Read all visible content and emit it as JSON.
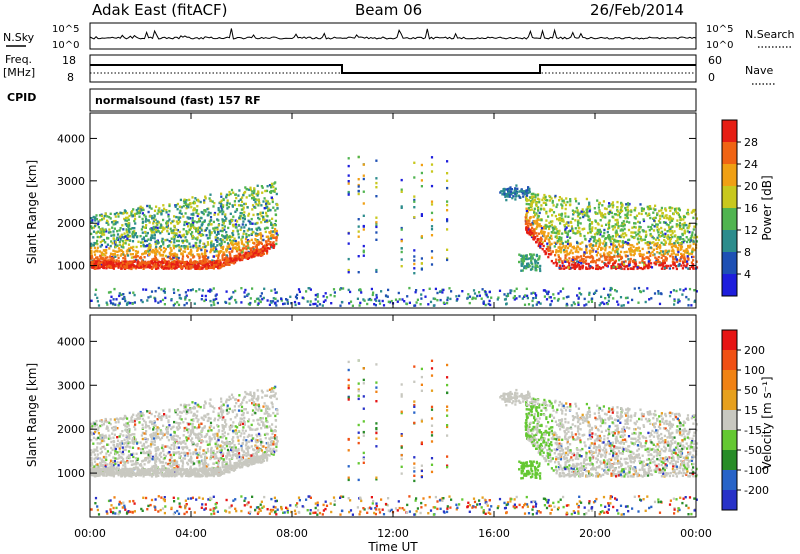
{
  "header": {
    "title": "Adak East (fitACF)",
    "beam": "Beam 06",
    "date": "26/Feb/2014"
  },
  "panels": {
    "nsky": {
      "label": "N.Sky",
      "right_label": "N.Search",
      "ticks": [
        "10^5",
        "10^0"
      ]
    },
    "freq": {
      "label_line1": "Freq.",
      "label_line2": "[MHz]",
      "ticks": [
        "18",
        "8"
      ],
      "right_label": "Nave",
      "right_ticks": [
        "60",
        "0"
      ]
    },
    "cpid": {
      "label": "CPID",
      "text": "normalsound (fast) 157 RF"
    }
  },
  "chart_data": [
    {
      "type": "heatmap",
      "name": "power",
      "xlabel": "Time UT",
      "ylabel": "Slant Range [km]",
      "x_range_hours": [
        0,
        24
      ],
      "ylim": [
        0,
        4600
      ],
      "y_ticks": [
        "1000",
        "2000",
        "3000",
        "4000"
      ],
      "colorbar": {
        "label": "Power [dB]",
        "ticks": [
          "4",
          "8",
          "12",
          "16",
          "20",
          "24",
          "28"
        ],
        "colors": [
          "#1e1edc",
          "#1e50b4",
          "#2c8c8c",
          "#50b450",
          "#c8c81e",
          "#f0a014",
          "#f06414",
          "#e61e14"
        ]
      }
    },
    {
      "type": "heatmap",
      "name": "velocity",
      "xlabel": "Time UT",
      "ylabel": "Slant Range [km]",
      "x_range_hours": [
        0,
        24
      ],
      "ylim": [
        0,
        4600
      ],
      "y_ticks": [
        "1000",
        "2000",
        "3000",
        "4000"
      ],
      "colorbar": {
        "label": "Velocity [m s⁻¹]",
        "ticks": [
          "200",
          "100",
          "50",
          "15",
          "-15",
          "-50",
          "-100",
          "-200"
        ],
        "colors": [
          "#2832c8",
          "#2864c8",
          "#288c28",
          "#64c832",
          "#c8c8c0",
          "#e6a01e",
          "#f08214",
          "#f05014",
          "#e61414"
        ]
      }
    }
  ],
  "x_tick_labels": [
    "00:00",
    "04:00",
    "08:00",
    "12:00",
    "16:00",
    "20:00",
    "00:00"
  ]
}
